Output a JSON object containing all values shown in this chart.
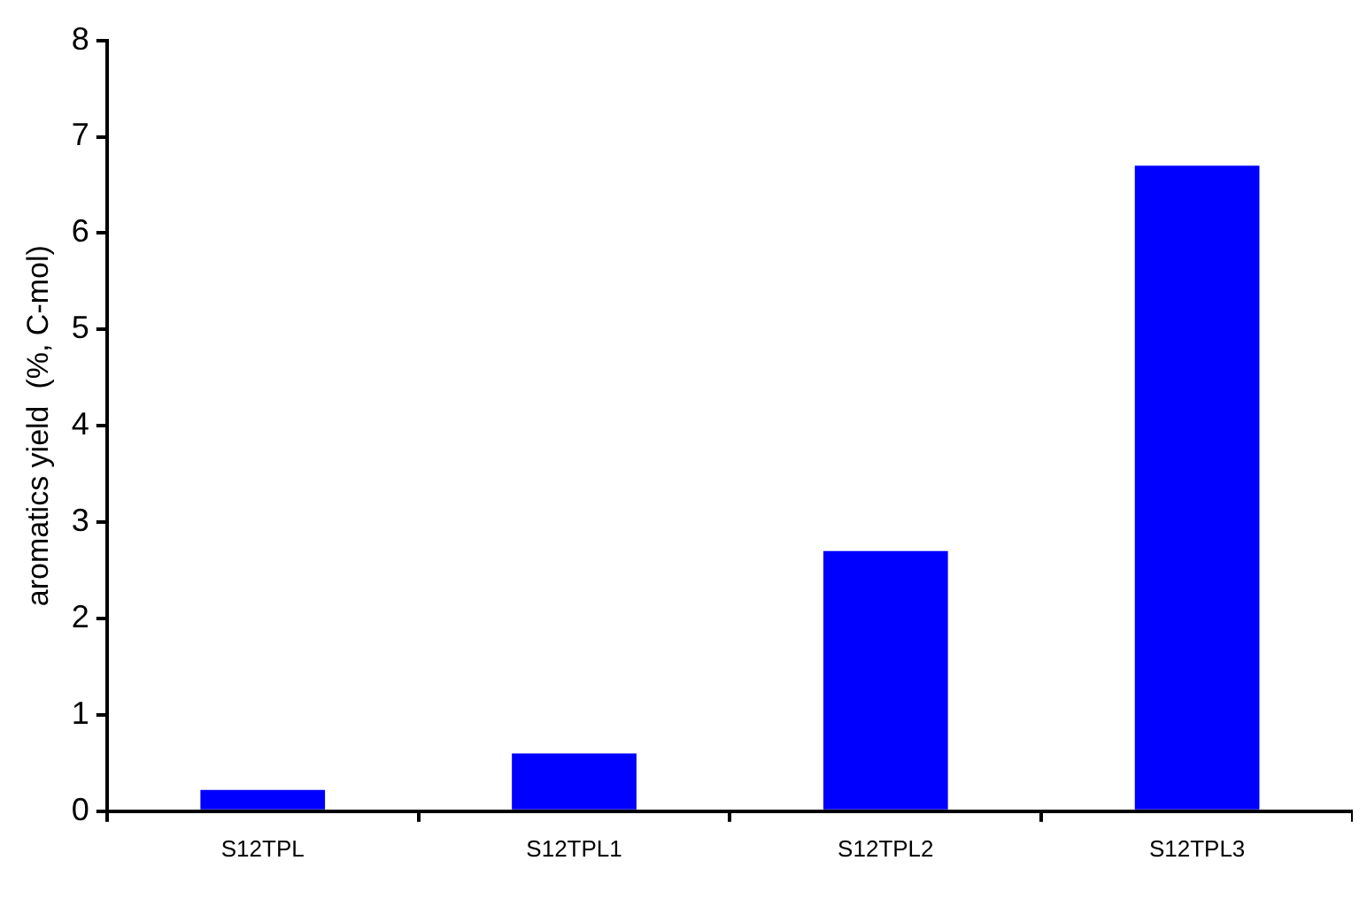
{
  "chart_data": {
    "type": "bar",
    "ylabel": "aromatics yield  (%, C-mol)",
    "categories": [
      "S12TPL",
      "S12TPL1",
      "S12TPL2",
      "S12TPL3"
    ],
    "values": [
      0.22,
      0.6,
      2.7,
      6.7
    ],
    "color": "#0000ff",
    "ylim": [
      0,
      8
    ],
    "yticks": [
      0,
      1,
      2,
      3,
      4,
      5,
      6,
      7,
      8
    ],
    "grid": false,
    "legend": false
  }
}
